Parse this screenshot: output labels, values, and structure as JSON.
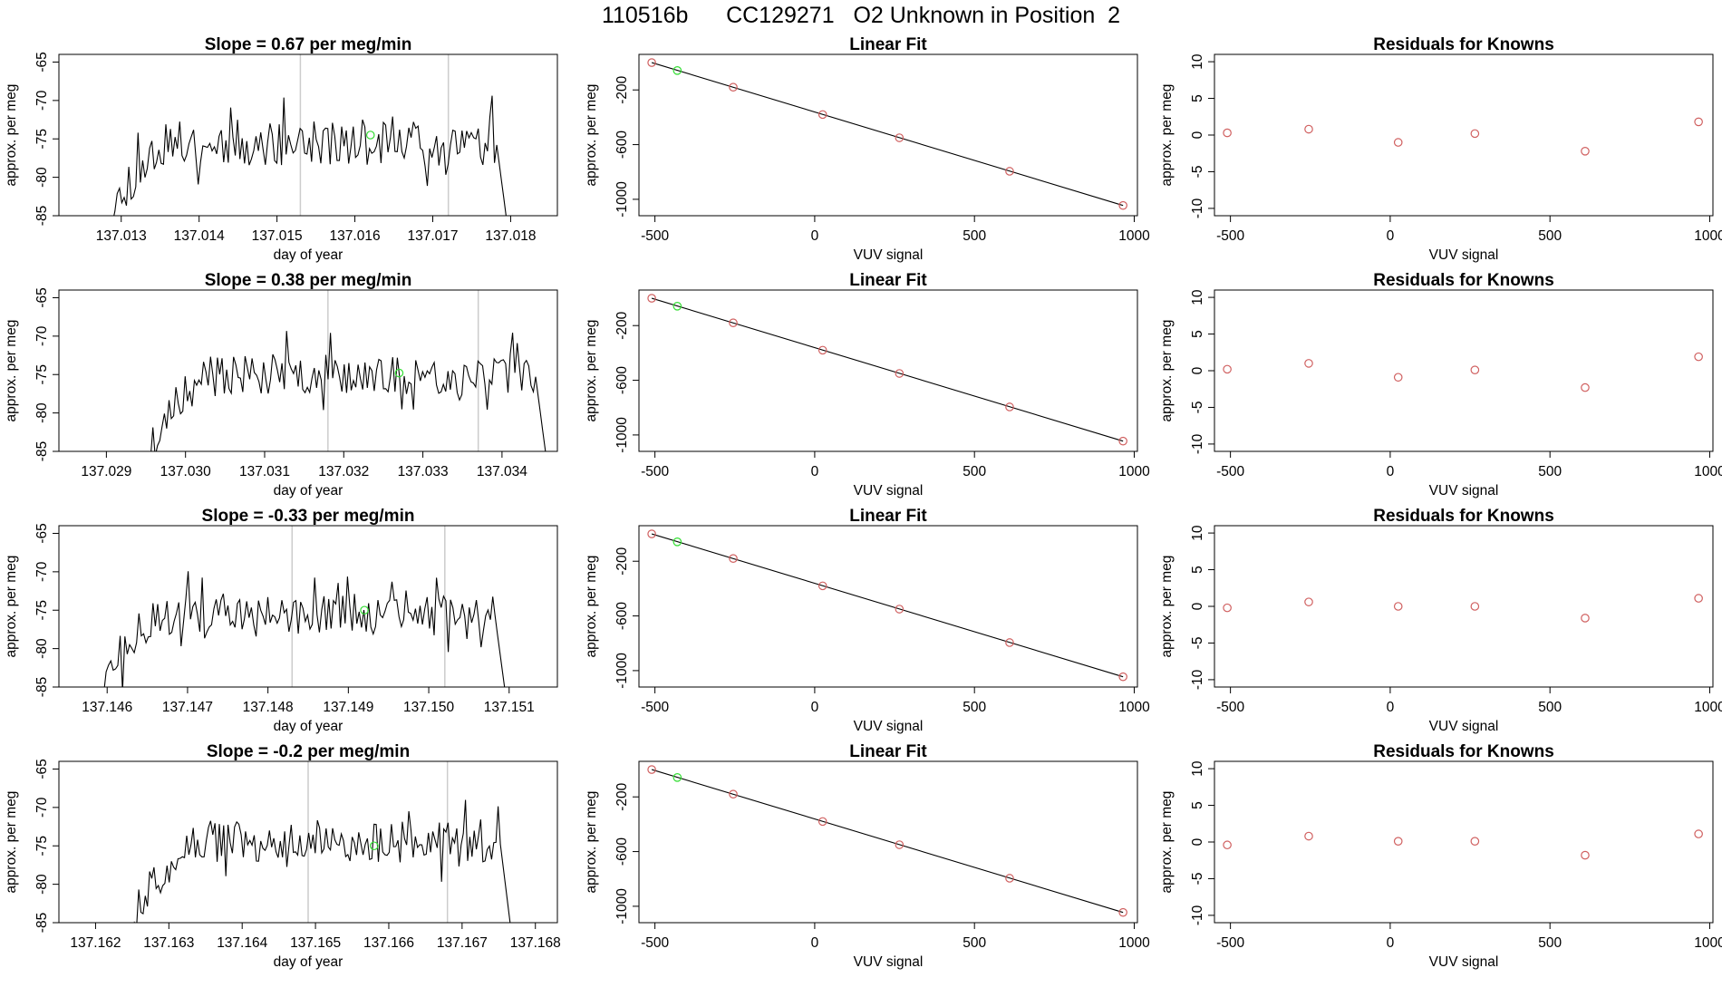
{
  "title": "110516b      CC129271   O2 Unknown in Position  2",
  "colors": {
    "trace": "#000000",
    "unknown_marker": "#33dd33",
    "known_marker": "#d06060",
    "guide_line": "#cccccc",
    "fit_line": "#000000",
    "frame": "#000000"
  },
  "panels": {
    "timeseries_ylabel": "approx. per meg",
    "timeseries_xlabel": "day of year",
    "fit_title": "Linear Fit",
    "fit_xlabel": "VUV signal",
    "fit_ylabel": "approx. per meg",
    "resid_title": "Residuals for Knowns",
    "resid_xlabel": "VUV signal",
    "resid_ylabel": "approx. per meg"
  },
  "chart_data": [
    {
      "type": "line",
      "title": "Slope =  0.67  per meg/min",
      "xlabel": "day of year",
      "ylabel": "approx. per meg",
      "xlim": [
        137.0122,
        137.0186
      ],
      "ylim": [
        -85,
        -64
      ],
      "xticks": [
        "137.013",
        "137.014",
        "137.015",
        "137.016",
        "137.017",
        "137.018"
      ],
      "yticks": [
        "-65",
        "-70",
        "-75",
        "-80",
        "-85"
      ],
      "trace_start": 137.0128,
      "trace_end": 137.018,
      "plateau_level": -75.5,
      "noise": 1.6,
      "trace_seed": 11,
      "guide_lines": [
        137.0153,
        137.0172
      ],
      "unknown_point": {
        "x": 137.0162,
        "y": -74.5
      }
    },
    {
      "type": "line",
      "title": "Slope =  0.38  per meg/min",
      "xlabel": "day of year",
      "ylabel": "approx. per meg",
      "xlim": [
        137.0284,
        137.0347
      ],
      "ylim": [
        -85,
        -64
      ],
      "xticks": [
        "137.029",
        "137.030",
        "137.031",
        "137.032",
        "137.033",
        "137.034"
      ],
      "yticks": [
        "-65",
        "-70",
        "-75",
        "-80",
        "-85"
      ],
      "trace_start": 137.0295,
      "trace_end": 137.0346,
      "plateau_level": -75.0,
      "noise": 1.4,
      "trace_seed": 23,
      "guide_lines": [
        137.0318,
        137.0337
      ],
      "unknown_point": {
        "x": 137.0327,
        "y": -74.8
      }
    },
    {
      "type": "line",
      "title": "Slope =  -0.33  per meg/min",
      "xlabel": "day of year",
      "ylabel": "approx. per meg",
      "xlim": [
        137.1454,
        137.1516
      ],
      "ylim": [
        -85,
        -64
      ],
      "xticks": [
        "137.146",
        "137.147",
        "137.148",
        "137.149",
        "137.150",
        "137.151"
      ],
      "yticks": [
        "-65",
        "-70",
        "-75",
        "-80",
        "-85"
      ],
      "trace_start": 137.1459,
      "trace_end": 137.151,
      "plateau_level": -75.5,
      "noise": 1.4,
      "trace_seed": 37,
      "guide_lines": [
        137.1483,
        137.1502
      ],
      "unknown_point": {
        "x": 137.1492,
        "y": -75.0
      }
    },
    {
      "type": "line",
      "title": "Slope =  -0.2  per meg/min",
      "xlabel": "day of year",
      "ylabel": "approx. per meg",
      "xlim": [
        137.1615,
        137.1683
      ],
      "ylim": [
        -85,
        -64
      ],
      "xticks": [
        "137.162",
        "137.163",
        "137.164",
        "137.165",
        "137.166",
        "137.167",
        "137.168"
      ],
      "yticks": [
        "-65",
        "-70",
        "-75",
        "-80",
        "-85"
      ],
      "trace_start": 137.1625,
      "trace_end": 137.1677,
      "plateau_level": -74.5,
      "noise": 1.4,
      "trace_seed": 51,
      "guide_lines": [
        137.1649,
        137.1668
      ],
      "unknown_point": {
        "x": 137.1658,
        "y": -75.0
      }
    },
    {
      "type": "scatter",
      "title": "Linear Fit",
      "xlabel": "VUV signal",
      "ylabel": "approx. per meg",
      "xlim": [
        -550,
        1010
      ],
      "ylim": [
        -1120,
        60
      ],
      "xticks": [
        "-500",
        "0",
        "500",
        "1000"
      ],
      "yticks": [
        "-200",
        "-600",
        "-1000"
      ],
      "fit_line": {
        "x": [
          -510,
          965
        ],
        "y": [
          0,
          -1045
        ]
      },
      "known_points": [
        {
          "x": -510,
          "y": 0
        },
        {
          "x": -255,
          "y": -180
        },
        {
          "x": 25,
          "y": -380
        },
        {
          "x": 265,
          "y": -550
        },
        {
          "x": 610,
          "y": -795
        },
        {
          "x": 965,
          "y": -1045
        }
      ],
      "unknown_point": {
        "x": -430,
        "y": -58
      }
    },
    {
      "type": "scatter",
      "title": "Linear Fit",
      "xlabel": "VUV signal",
      "ylabel": "approx. per meg",
      "xlim": [
        -550,
        1010
      ],
      "ylim": [
        -1120,
        60
      ],
      "xticks": [
        "-500",
        "0",
        "500",
        "1000"
      ],
      "yticks": [
        "-200",
        "-600",
        "-1000"
      ],
      "fit_line": {
        "x": [
          -510,
          965
        ],
        "y": [
          0,
          -1045
        ]
      },
      "known_points": [
        {
          "x": -510,
          "y": 0
        },
        {
          "x": -255,
          "y": -180
        },
        {
          "x": 25,
          "y": -380
        },
        {
          "x": 265,
          "y": -550
        },
        {
          "x": 610,
          "y": -795
        },
        {
          "x": 965,
          "y": -1045
        }
      ],
      "unknown_point": {
        "x": -430,
        "y": -58
      }
    },
    {
      "type": "scatter",
      "title": "Linear Fit",
      "xlabel": "VUV signal",
      "ylabel": "approx. per meg",
      "xlim": [
        -550,
        1010
      ],
      "ylim": [
        -1120,
        60
      ],
      "xticks": [
        "-500",
        "0",
        "500",
        "1000"
      ],
      "yticks": [
        "-200",
        "-600",
        "-1000"
      ],
      "fit_line": {
        "x": [
          -510,
          965
        ],
        "y": [
          0,
          -1045
        ]
      },
      "known_points": [
        {
          "x": -510,
          "y": 0
        },
        {
          "x": -255,
          "y": -180
        },
        {
          "x": 25,
          "y": -380
        },
        {
          "x": 265,
          "y": -550
        },
        {
          "x": 610,
          "y": -795
        },
        {
          "x": 965,
          "y": -1045
        }
      ],
      "unknown_point": {
        "x": -430,
        "y": -58
      }
    },
    {
      "type": "scatter",
      "title": "Linear Fit",
      "xlabel": "VUV signal",
      "ylabel": "approx. per meg",
      "xlim": [
        -550,
        1010
      ],
      "ylim": [
        -1120,
        60
      ],
      "xticks": [
        "-500",
        "0",
        "500",
        "1000"
      ],
      "yticks": [
        "-200",
        "-600",
        "-1000"
      ],
      "fit_line": {
        "x": [
          -510,
          965
        ],
        "y": [
          0,
          -1045
        ]
      },
      "known_points": [
        {
          "x": -510,
          "y": 0
        },
        {
          "x": -255,
          "y": -180
        },
        {
          "x": 25,
          "y": -380
        },
        {
          "x": 265,
          "y": -550
        },
        {
          "x": 610,
          "y": -795
        },
        {
          "x": 965,
          "y": -1045
        }
      ],
      "unknown_point": {
        "x": -430,
        "y": -58
      }
    },
    {
      "type": "scatter",
      "title": "Residuals for Knowns",
      "xlabel": "VUV signal",
      "ylabel": "approx. per meg",
      "xlim": [
        -550,
        1010
      ],
      "ylim": [
        -11,
        11
      ],
      "xticks": [
        "-500",
        "0",
        "500",
        "1000"
      ],
      "yticks": [
        "10",
        "5",
        "0",
        "-5",
        "-10"
      ],
      "points": [
        {
          "x": -510,
          "y": 0.3
        },
        {
          "x": -255,
          "y": 0.8
        },
        {
          "x": 25,
          "y": -1.0
        },
        {
          "x": 265,
          "y": 0.2
        },
        {
          "x": 610,
          "y": -2.2
        },
        {
          "x": 965,
          "y": 1.8
        }
      ]
    },
    {
      "type": "scatter",
      "title": "Residuals for Knowns",
      "xlabel": "VUV signal",
      "ylabel": "approx. per meg",
      "xlim": [
        -550,
        1010
      ],
      "ylim": [
        -11,
        11
      ],
      "xticks": [
        "-500",
        "0",
        "500",
        "1000"
      ],
      "yticks": [
        "10",
        "5",
        "0",
        "-5",
        "-10"
      ],
      "points": [
        {
          "x": -510,
          "y": 0.2
        },
        {
          "x": -255,
          "y": 1.0
        },
        {
          "x": 25,
          "y": -0.9
        },
        {
          "x": 265,
          "y": 0.1
        },
        {
          "x": 610,
          "y": -2.3
        },
        {
          "x": 965,
          "y": 1.9
        }
      ]
    },
    {
      "type": "scatter",
      "title": "Residuals for Knowns",
      "xlabel": "VUV signal",
      "ylabel": "approx. per meg",
      "xlim": [
        -550,
        1010
      ],
      "ylim": [
        -11,
        11
      ],
      "xticks": [
        "-500",
        "0",
        "500",
        "1000"
      ],
      "yticks": [
        "10",
        "5",
        "0",
        "-5",
        "-10"
      ],
      "points": [
        {
          "x": -510,
          "y": -0.2
        },
        {
          "x": -255,
          "y": 0.6
        },
        {
          "x": 25,
          "y": 0.0
        },
        {
          "x": 265,
          "y": 0.0
        },
        {
          "x": 610,
          "y": -1.6
        },
        {
          "x": 965,
          "y": 1.1
        }
      ]
    },
    {
      "type": "scatter",
      "title": "Residuals for Knowns",
      "xlabel": "VUV signal",
      "ylabel": "approx. per meg",
      "xlim": [
        -550,
        1010
      ],
      "ylim": [
        -11,
        11
      ],
      "xticks": [
        "-500",
        "0",
        "500",
        "1000"
      ],
      "yticks": [
        "10",
        "5",
        "0",
        "-5",
        "-10"
      ],
      "points": [
        {
          "x": -510,
          "y": -0.4
        },
        {
          "x": -255,
          "y": 0.8
        },
        {
          "x": 25,
          "y": 0.1
        },
        {
          "x": 265,
          "y": 0.1
        },
        {
          "x": 610,
          "y": -1.8
        },
        {
          "x": 965,
          "y": 1.1
        }
      ]
    }
  ]
}
